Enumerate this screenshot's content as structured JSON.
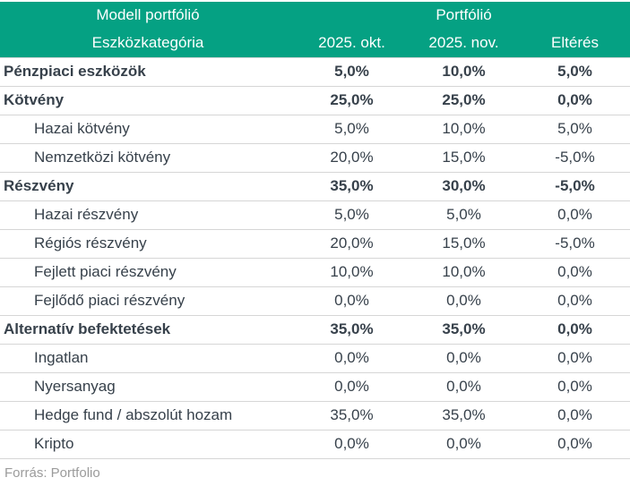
{
  "colors": {
    "header_bg": "#05a183",
    "header_text": "#ffffff",
    "body_text": "#37414b",
    "divider": "#d6d6d6",
    "source_text": "#9b9b9b",
    "page_bg": "#ffffff"
  },
  "chart_data": {
    "type": "table",
    "column_groups": [
      "Modell portfólió",
      "Portfólió"
    ],
    "columns": [
      "Eszközkategória",
      "2025. okt.",
      "2025. nov.",
      "Eltérés"
    ],
    "rows": [
      {
        "label": "Pénzpiaci eszközök",
        "style": "category",
        "values": [
          "5,0%",
          "10,0%",
          "5,0%"
        ]
      },
      {
        "label": "Kötvény",
        "style": "category",
        "values": [
          "25,0%",
          "25,0%",
          "0,0%"
        ]
      },
      {
        "label": "Hazai kötvény",
        "style": "sub",
        "values": [
          "5,0%",
          "10,0%",
          "5,0%"
        ]
      },
      {
        "label": "Nemzetközi kötvény",
        "style": "sub",
        "values": [
          "20,0%",
          "15,0%",
          "-5,0%"
        ]
      },
      {
        "label": "Részvény",
        "style": "category",
        "values": [
          "35,0%",
          "30,0%",
          "-5,0%"
        ]
      },
      {
        "label": "Hazai részvény",
        "style": "sub",
        "values": [
          "5,0%",
          "5,0%",
          "0,0%"
        ]
      },
      {
        "label": "Régiós részvény",
        "style": "sub",
        "values": [
          "20,0%",
          "15,0%",
          "-5,0%"
        ]
      },
      {
        "label": "Fejlett piaci részvény",
        "style": "sub",
        "values": [
          "10,0%",
          "10,0%",
          "0,0%"
        ]
      },
      {
        "label": "Fejlődő piaci részvény",
        "style": "sub",
        "values": [
          "0,0%",
          "0,0%",
          "0,0%"
        ]
      },
      {
        "label": "Alternatív befektetések",
        "style": "category",
        "values": [
          "35,0%",
          "35,0%",
          "0,0%"
        ]
      },
      {
        "label": "Ingatlan",
        "style": "sub",
        "values": [
          "0,0%",
          "0,0%",
          "0,0%"
        ]
      },
      {
        "label": "Nyersanyag",
        "style": "sub",
        "values": [
          "0,0%",
          "0,0%",
          "0,0%"
        ]
      },
      {
        "label": "Hedge fund / abszolút hozam",
        "style": "sub",
        "values": [
          "35,0%",
          "35,0%",
          "0,0%"
        ]
      },
      {
        "label": "Kripto",
        "style": "sub",
        "values": [
          "0,0%",
          "0,0%",
          "0,0%"
        ]
      }
    ]
  },
  "footer": {
    "source": "Forrás: Portfolio"
  }
}
